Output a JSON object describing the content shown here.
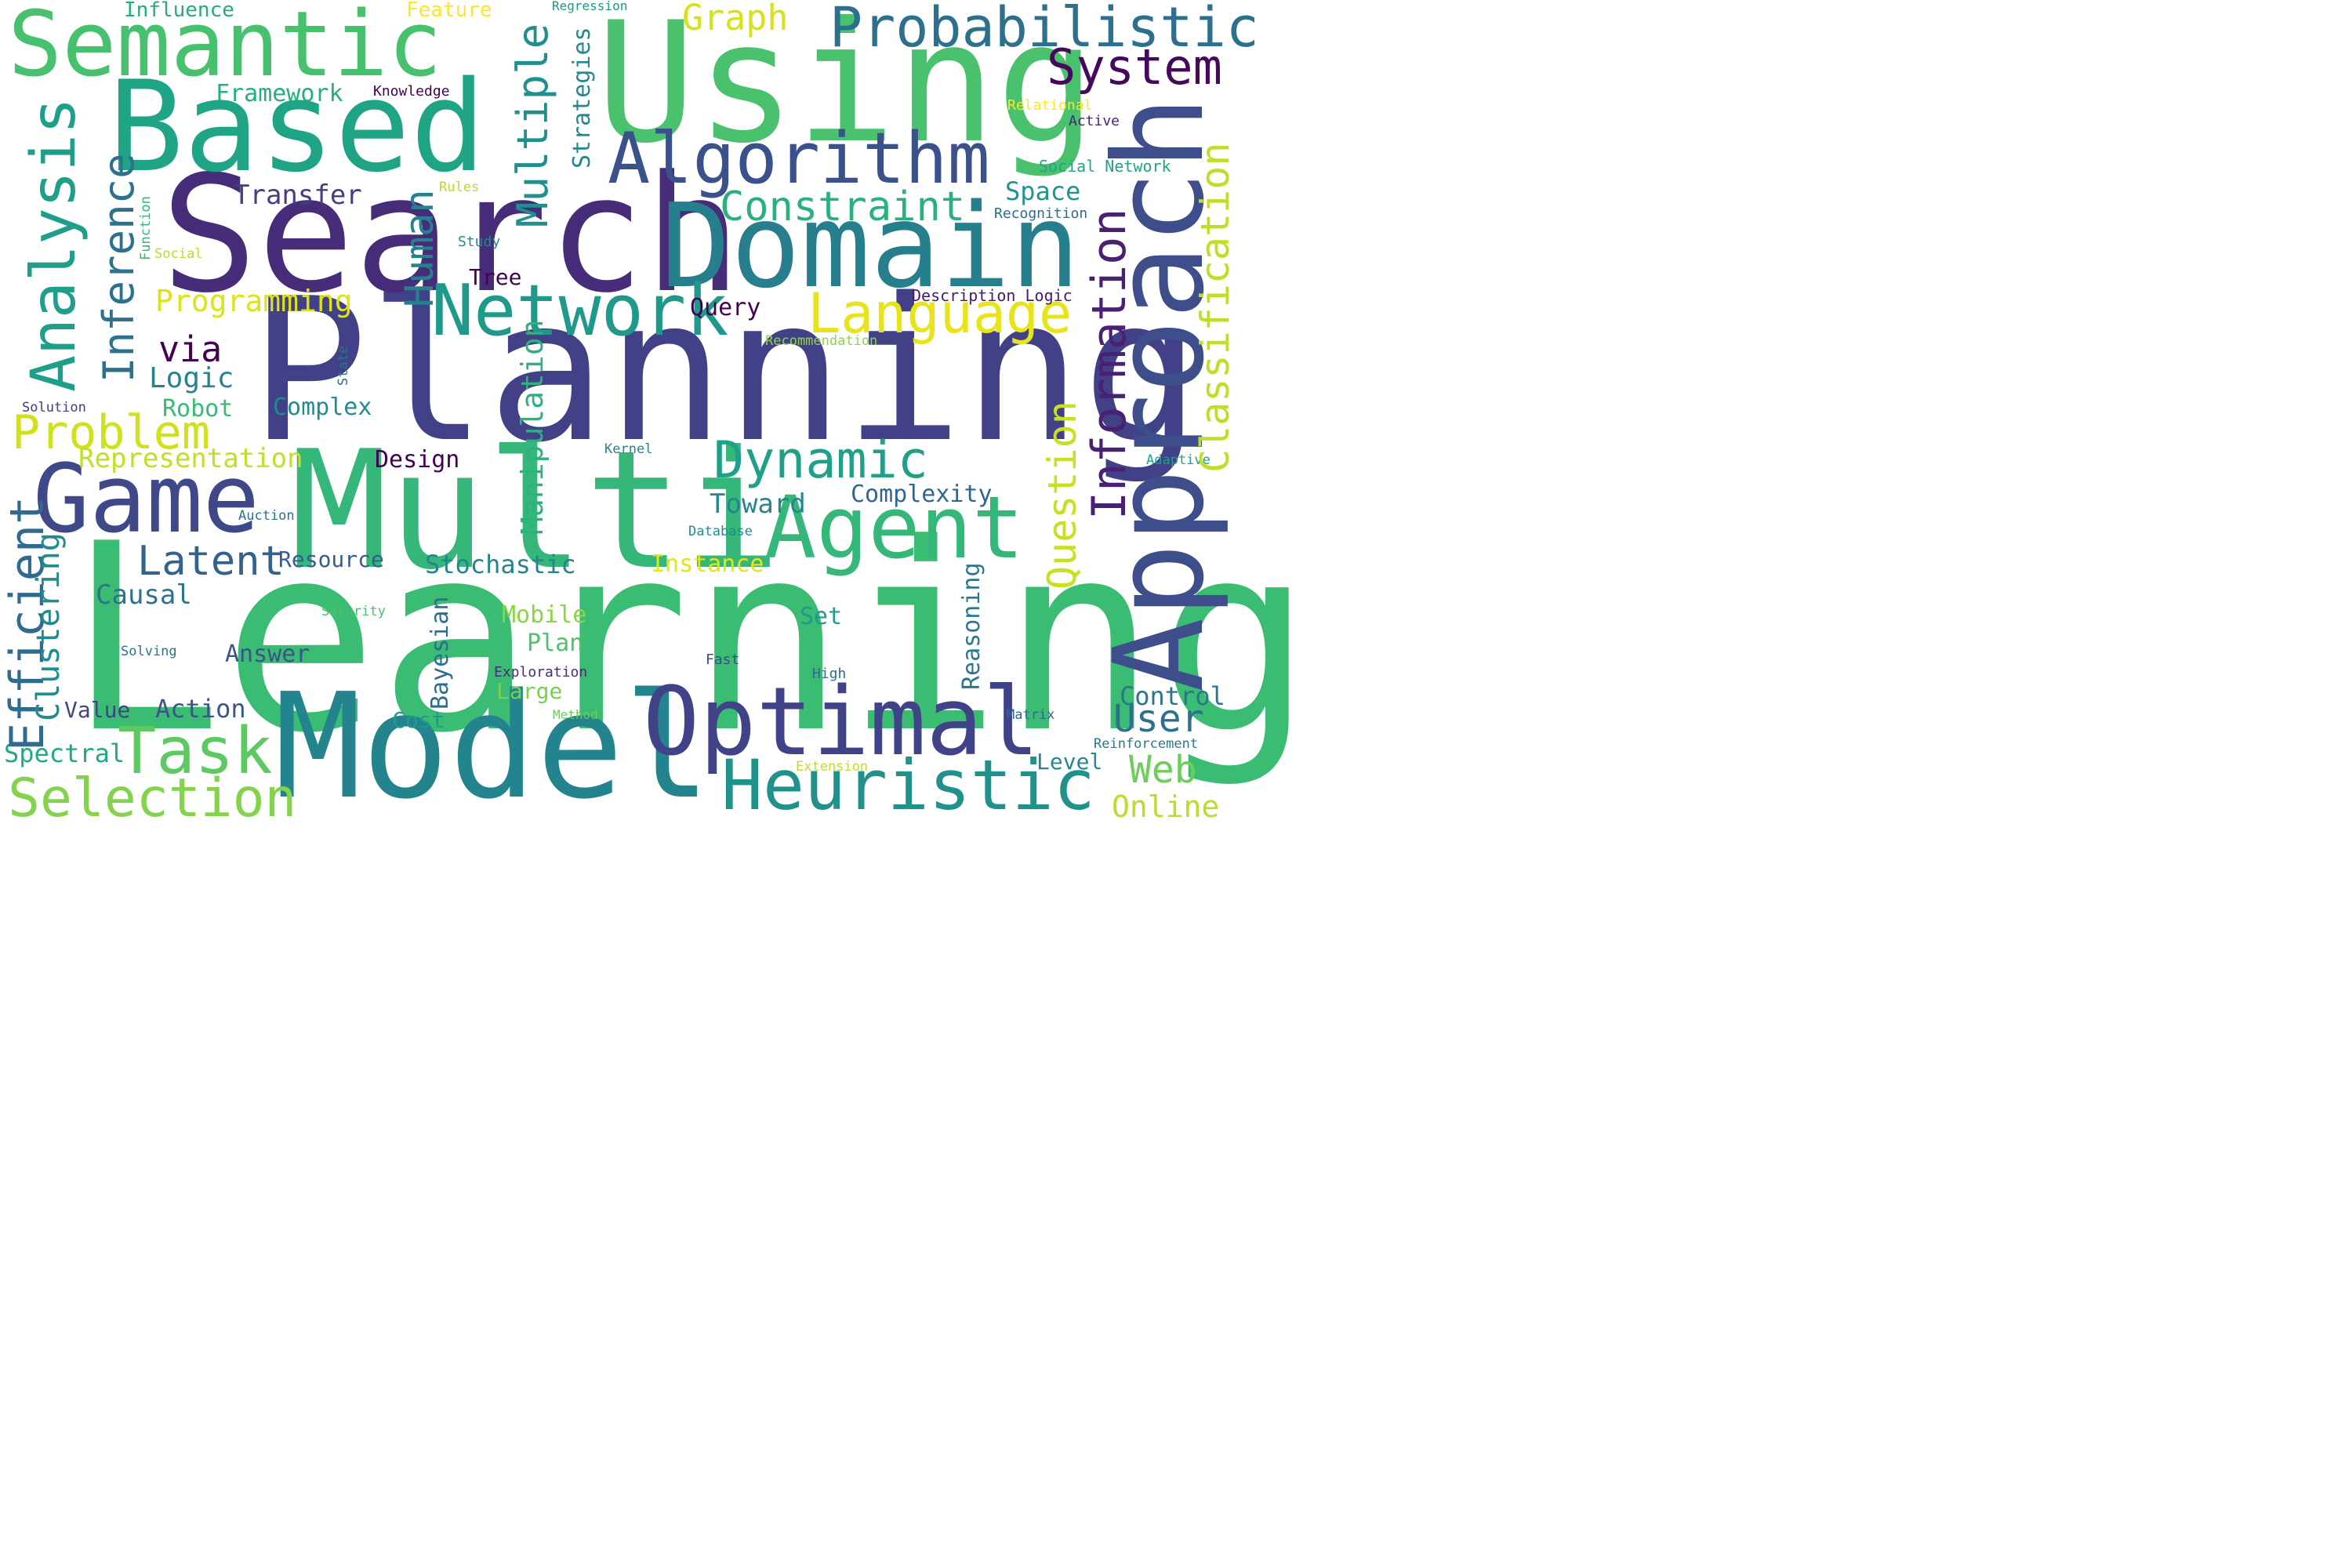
{
  "words": {
    "learning": "Learning",
    "planning": "Planning",
    "multi": "Multi",
    "search": "Search",
    "using": "Using",
    "approach": "Approach",
    "model": "Model",
    "based": "Based",
    "domain": "Domain",
    "semantic": "Semantic",
    "optimal": "Optimal",
    "agent": "Agent",
    "game": "Game",
    "algorithm": "Algorithm",
    "network": "Network",
    "heuristic": "Heuristic",
    "probabilistic": "Probabilistic",
    "analysis": "Analysis",
    "task": "Task",
    "language": "Language",
    "efficient": "Efficient",
    "dynamic": "Dynamic",
    "selection": "Selection",
    "information": "Information",
    "problem": "Problem",
    "system": "System",
    "multiple": "Multiple",
    "constraint": "Constraint",
    "inference": "Inference",
    "classification": "Classification",
    "question": "Question",
    "latent": "Latent",
    "human": "Human",
    "graph": "Graph",
    "manipulation": "Manipulation",
    "via": "via",
    "transfer": "Transfer",
    "user": "User",
    "programming": "Programming",
    "web": "Web",
    "clustering": "Clustering",
    "representation": "Representation",
    "logic": "Logic",
    "toward": "Toward",
    "online": "Online",
    "action": "Action",
    "value": "Value",
    "spectral": "Spectral",
    "causal": "Causal",
    "complexity": "Complexity",
    "control": "Control",
    "framework": "Framework",
    "stochastic": "Stochastic",
    "space": "Space",
    "resource": "Resource",
    "complex": "Complex",
    "robot": "Robot",
    "design": "Design",
    "answer": "Answer",
    "instance": "Instance",
    "mobile": "Mobile",
    "query": "Query",
    "reasoning": "Reasoning",
    "influence": "Influence",
    "plan": "Plan",
    "bayesian": "Bayesian",
    "feature": "Feature",
    "strategies": "Strategies",
    "set": "Set",
    "large": "Large",
    "cost": "Cost",
    "tree": "Tree",
    "level": "Level",
    "knowledge": "Knowledge",
    "social_network": "Social Network",
    "description_logic": "Description Logic",
    "relational": "Relational",
    "active": "Active",
    "recognition": "Recognition",
    "study": "Study",
    "rules": "Rules",
    "function": "Function",
    "social": "Social",
    "state": "State",
    "solution": "Solution",
    "kernel": "Kernel",
    "adaptive": "Adaptive",
    "auction": "Auction",
    "database": "Database",
    "security": "Security",
    "solving": "Solving",
    "exploration": "Exploration",
    "fast": "Fast",
    "high": "High",
    "method": "Method",
    "matrix": "Matrix",
    "reinforcement": "Reinforcement",
    "extension": "Extension",
    "regression": "Regression",
    "recommendation": "Recommendation"
  },
  "colors": {
    "background": "#ffffff",
    "dark_purple": "#440154",
    "indigo": "#482878",
    "deep_blue": "#3e4989",
    "blue": "#31688e",
    "teal_blue": "#26828e",
    "teal": "#1f9e89",
    "green_teal": "#35b779",
    "green": "#6ece58",
    "lime": "#b5de2b",
    "yellow": "#fde725"
  }
}
